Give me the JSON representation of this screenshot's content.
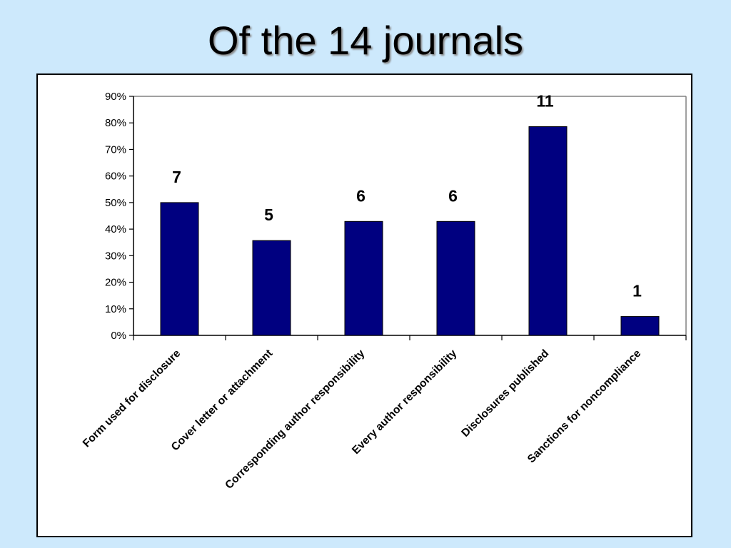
{
  "slide": {
    "title": "Of the 14 journals"
  },
  "colors": {
    "background": "#cde9fc",
    "bar_fill": "#000080",
    "plot_border": "#808080"
  },
  "chart_data": {
    "type": "bar",
    "title": "",
    "xlabel": "",
    "ylabel": "",
    "ylim": [
      0,
      0.9
    ],
    "y_ticks": [
      "0%",
      "10%",
      "20%",
      "30%",
      "40%",
      "50%",
      "60%",
      "70%",
      "80%",
      "90%"
    ],
    "grid": false,
    "legend": "none",
    "categories": [
      "Form used for disclosure",
      "Cover letter or attachment",
      "Corresponding author responsibility",
      "Every author responsibility",
      "Disclosures published",
      "Sanctions for noncompliance"
    ],
    "values": [
      0.5,
      0.357,
      0.429,
      0.429,
      0.786,
      0.071
    ],
    "data_labels": [
      "7",
      "5",
      "6",
      "6",
      "11",
      "1"
    ]
  }
}
